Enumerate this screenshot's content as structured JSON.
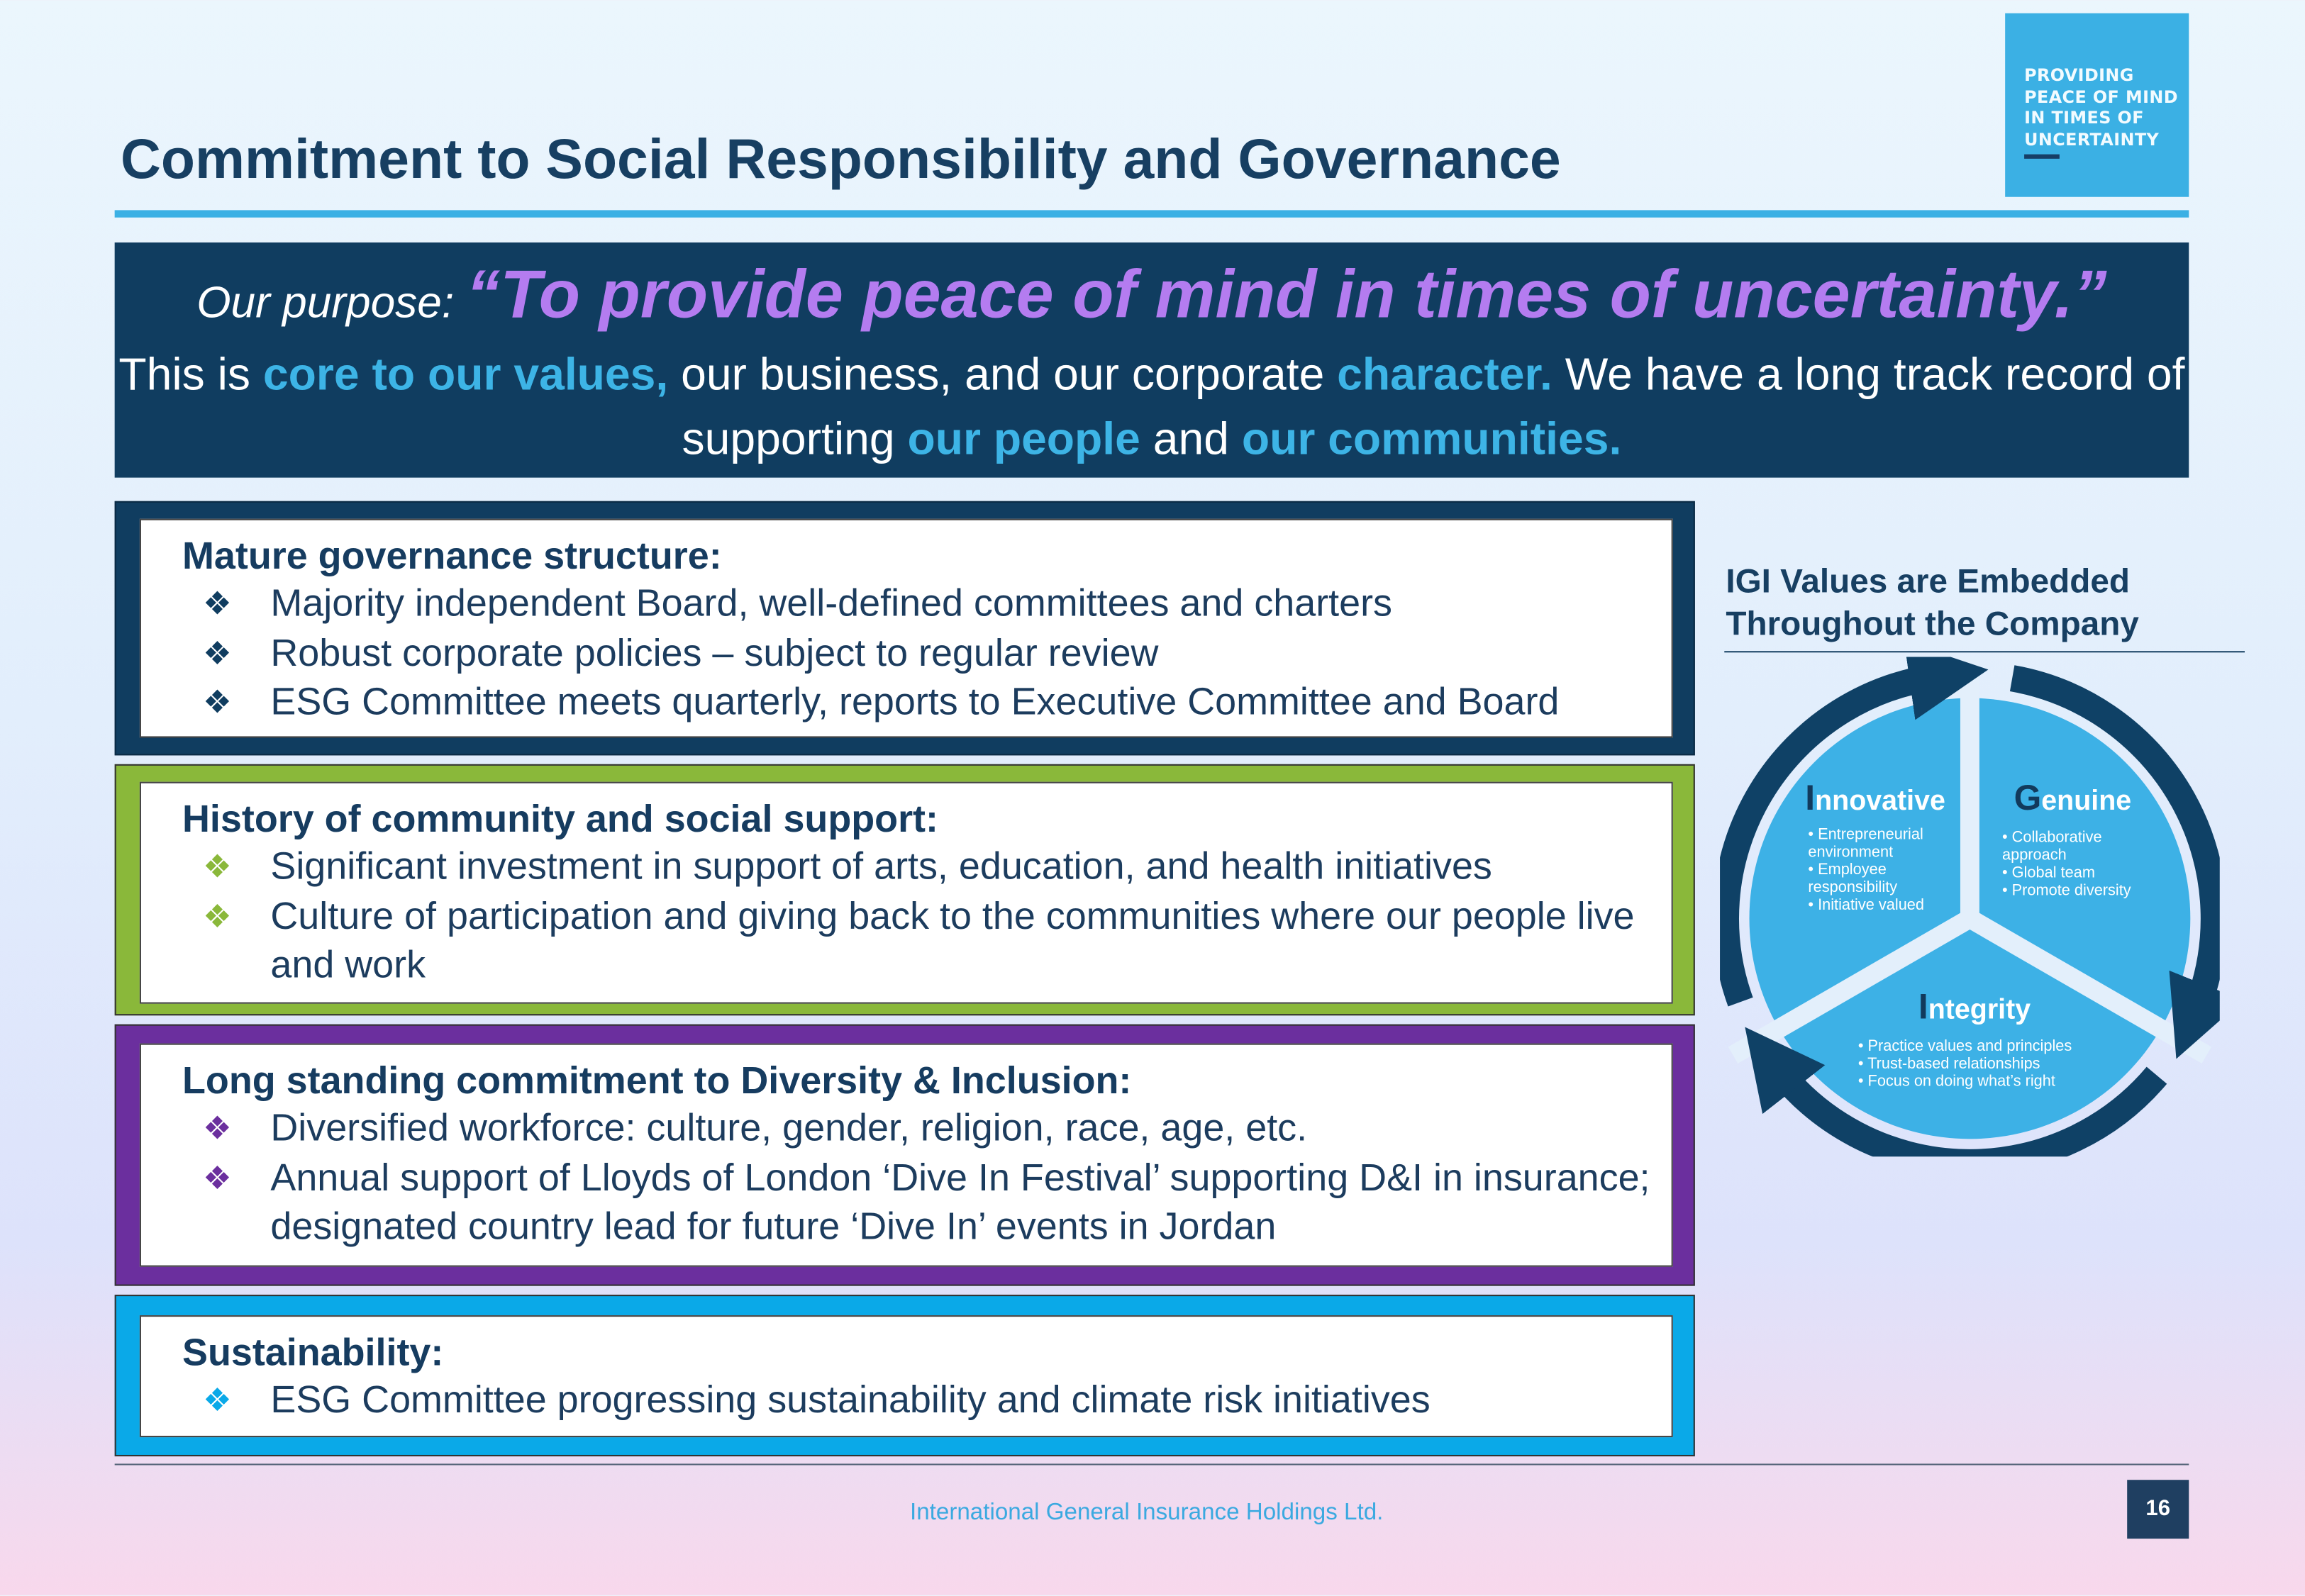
{
  "logo": {
    "text": "PROVIDING\nPEACE OF MIND\nIN TIMES OF\nUNCERTAINTY"
  },
  "title": "Commitment to Social Responsibility and Governance",
  "purpose": {
    "label": "Our purpose: ",
    "quote": "“To provide peace of mind in times of uncertainty.”",
    "p1": "This is ",
    "h1": "core to our values,",
    "p2": " our business, and our corporate ",
    "h2": "character.",
    "p3": " We have a long track record of supporting ",
    "h3": "our people",
    "p4": " and ",
    "h4": "our communities."
  },
  "sections": [
    {
      "heading": "Mature governance structure:",
      "bullet_color": "#103d60",
      "border_color": "#103d60",
      "bullets": [
        "Majority independent Board, well-defined committees and charters",
        "Robust corporate policies – subject to regular review",
        "ESG Committee meets quarterly, reports to Executive Committee and Board"
      ]
    },
    {
      "heading": "History of community and social support:",
      "bullet_color": "#8ab83a",
      "border_color": "#8ab83a",
      "bullets": [
        "Significant investment in support of arts, education, and health initiatives",
        "Culture of participation and giving back to the communities where our people live and work"
      ]
    },
    {
      "heading": "Long standing commitment to Diversity & Inclusion:",
      "bullet_color": "#6b2f9e",
      "border_color": "#6b2f9e",
      "bullets": [
        "Diversified workforce: culture, gender, religion, race, age, etc.",
        "Annual support of Lloyds of London ‘Dive In Festival’ supporting D&I in insurance; designated country lead for future ‘Dive In’ events in Jordan"
      ]
    },
    {
      "heading": "Sustainability:",
      "bullet_color": "#0aa9e8",
      "border_color": "#0aa9e8",
      "bullets": [
        "ESG Committee progressing sustainability and climate risk initiatives"
      ]
    }
  ],
  "bullet_glyph": "❖",
  "values_panel": {
    "title_line1": "IGI Values are Embedded",
    "title_line2": "Throughout the Company",
    "values": [
      {
        "initial": "I",
        "rest": "nnovative",
        "points": [
          "• Entrepreneurial",
          "  environment",
          "• Employee",
          "  responsibility",
          "• Initiative valued"
        ]
      },
      {
        "initial": "G",
        "rest": "enuine",
        "points": [
          "• Collaborative",
          "  approach",
          "• Global team",
          "• Promote diversity"
        ]
      },
      {
        "initial": "I",
        "rest": "ntegrity",
        "points": [
          "• Practice values and principles",
          "• Trust-based relationships",
          "• Focus on doing what’s right"
        ]
      }
    ]
  },
  "footer": {
    "company": "International General Insurance Holdings Ltd.",
    "page": "16"
  },
  "colors": {
    "navy": "#103d60",
    "accent_blue": "#3bb0e4",
    "quote_purple": "#b47cf0"
  }
}
